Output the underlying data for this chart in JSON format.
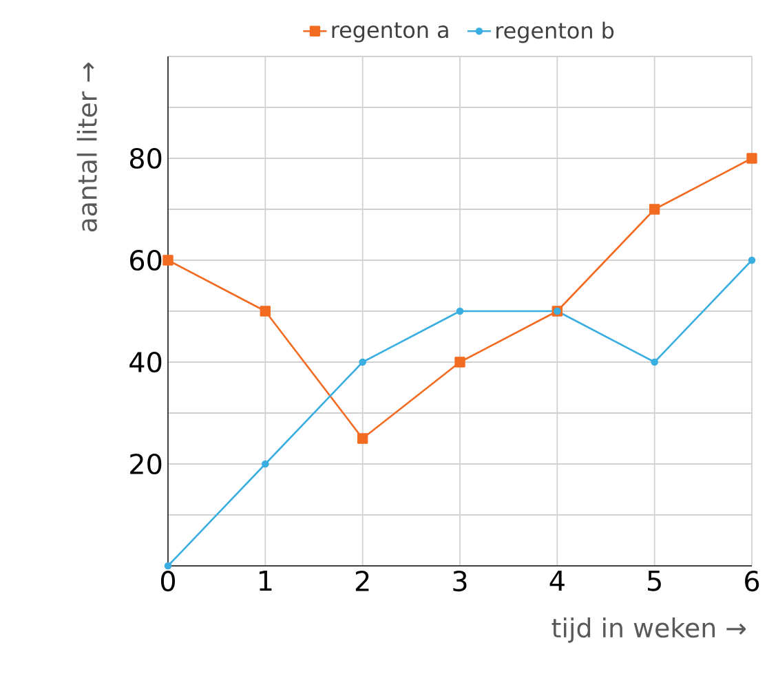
{
  "chart_data": {
    "type": "line",
    "x": [
      0,
      1,
      2,
      3,
      4,
      5,
      6
    ],
    "series": [
      {
        "name": "regenton a",
        "color": "#f26b21",
        "marker": "square",
        "values": [
          60,
          50,
          25,
          40,
          50,
          70,
          80
        ]
      },
      {
        "name": "regenton b",
        "color": "#3aaee0",
        "marker": "circle",
        "values": [
          0,
          20,
          40,
          50,
          50,
          40,
          60
        ]
      }
    ],
    "xlabel": "tijd in weken →",
    "ylabel": "aantal liter →",
    "xlim": [
      0,
      6
    ],
    "ylim": [
      0,
      100
    ],
    "xticks": [
      0,
      1,
      2,
      3,
      4,
      5,
      6
    ],
    "yticks": [
      {
        "value": 0,
        "label": null
      },
      {
        "value": 10,
        "label": null
      },
      20,
      {
        "value": 30,
        "label": null
      },
      40,
      {
        "value": 50,
        "label": null
      },
      60,
      {
        "value": 70,
        "label": null
      },
      80,
      {
        "value": 90,
        "label": null
      },
      {
        "value": 100,
        "label": null
      }
    ],
    "grid": true,
    "legend": "top",
    "line_style": "solid"
  }
}
